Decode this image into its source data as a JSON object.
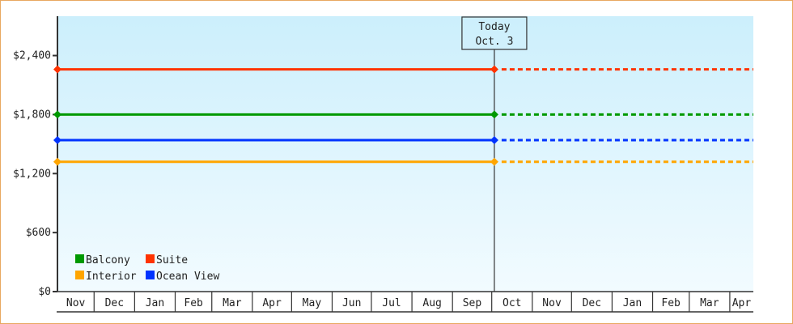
{
  "chart_data": {
    "type": "line",
    "title": "",
    "xlabel": "",
    "ylabel": "",
    "ylim": [
      0,
      2800
    ],
    "yticks": [
      0,
      600,
      1200,
      1800,
      2400
    ],
    "ytick_labels": [
      "$0",
      "$600",
      "$1,200",
      "$1,800",
      "$2,400"
    ],
    "xlim": [
      "Nov 3",
      "Apr 19"
    ],
    "x_tick_labels": [
      "Nov",
      "Dec",
      "Jan",
      "Feb",
      "Mar",
      "Apr",
      "May",
      "Jun",
      "Jul",
      "Aug",
      "Sep",
      "Oct",
      "Nov",
      "Dec",
      "Jan",
      "Feb",
      "Mar",
      "Apr"
    ],
    "today": {
      "line1": "Today",
      "line2": "Oct. 3"
    },
    "grid": false,
    "legend_position": "bottom-left",
    "background": {
      "top": "#cceffc",
      "bottom": "#f2fbff"
    },
    "series": [
      {
        "name": "Balcony",
        "color": "#009900",
        "x": [
          "Nov 3",
          "Oct 3"
        ],
        "values": [
          1800,
          1800
        ],
        "projected_to": "Apr 19",
        "projected_value": 1800
      },
      {
        "name": "Suite",
        "color": "#ff3300",
        "x": [
          "Nov 3",
          "Oct 3"
        ],
        "values": [
          2260,
          2260
        ],
        "projected_to": "Apr 19",
        "projected_value": 2260
      },
      {
        "name": "Interior",
        "color": "#ffa500",
        "x": [
          "Nov 3",
          "Oct 3"
        ],
        "values": [
          1320,
          1320
        ],
        "projected_to": "Apr 19",
        "projected_value": 1320
      },
      {
        "name": "Ocean View",
        "color": "#0033ff",
        "x": [
          "Nov 3",
          "Oct 3"
        ],
        "values": [
          1540,
          1540
        ],
        "projected_to": "Apr 19",
        "projected_value": 1540
      }
    ]
  }
}
